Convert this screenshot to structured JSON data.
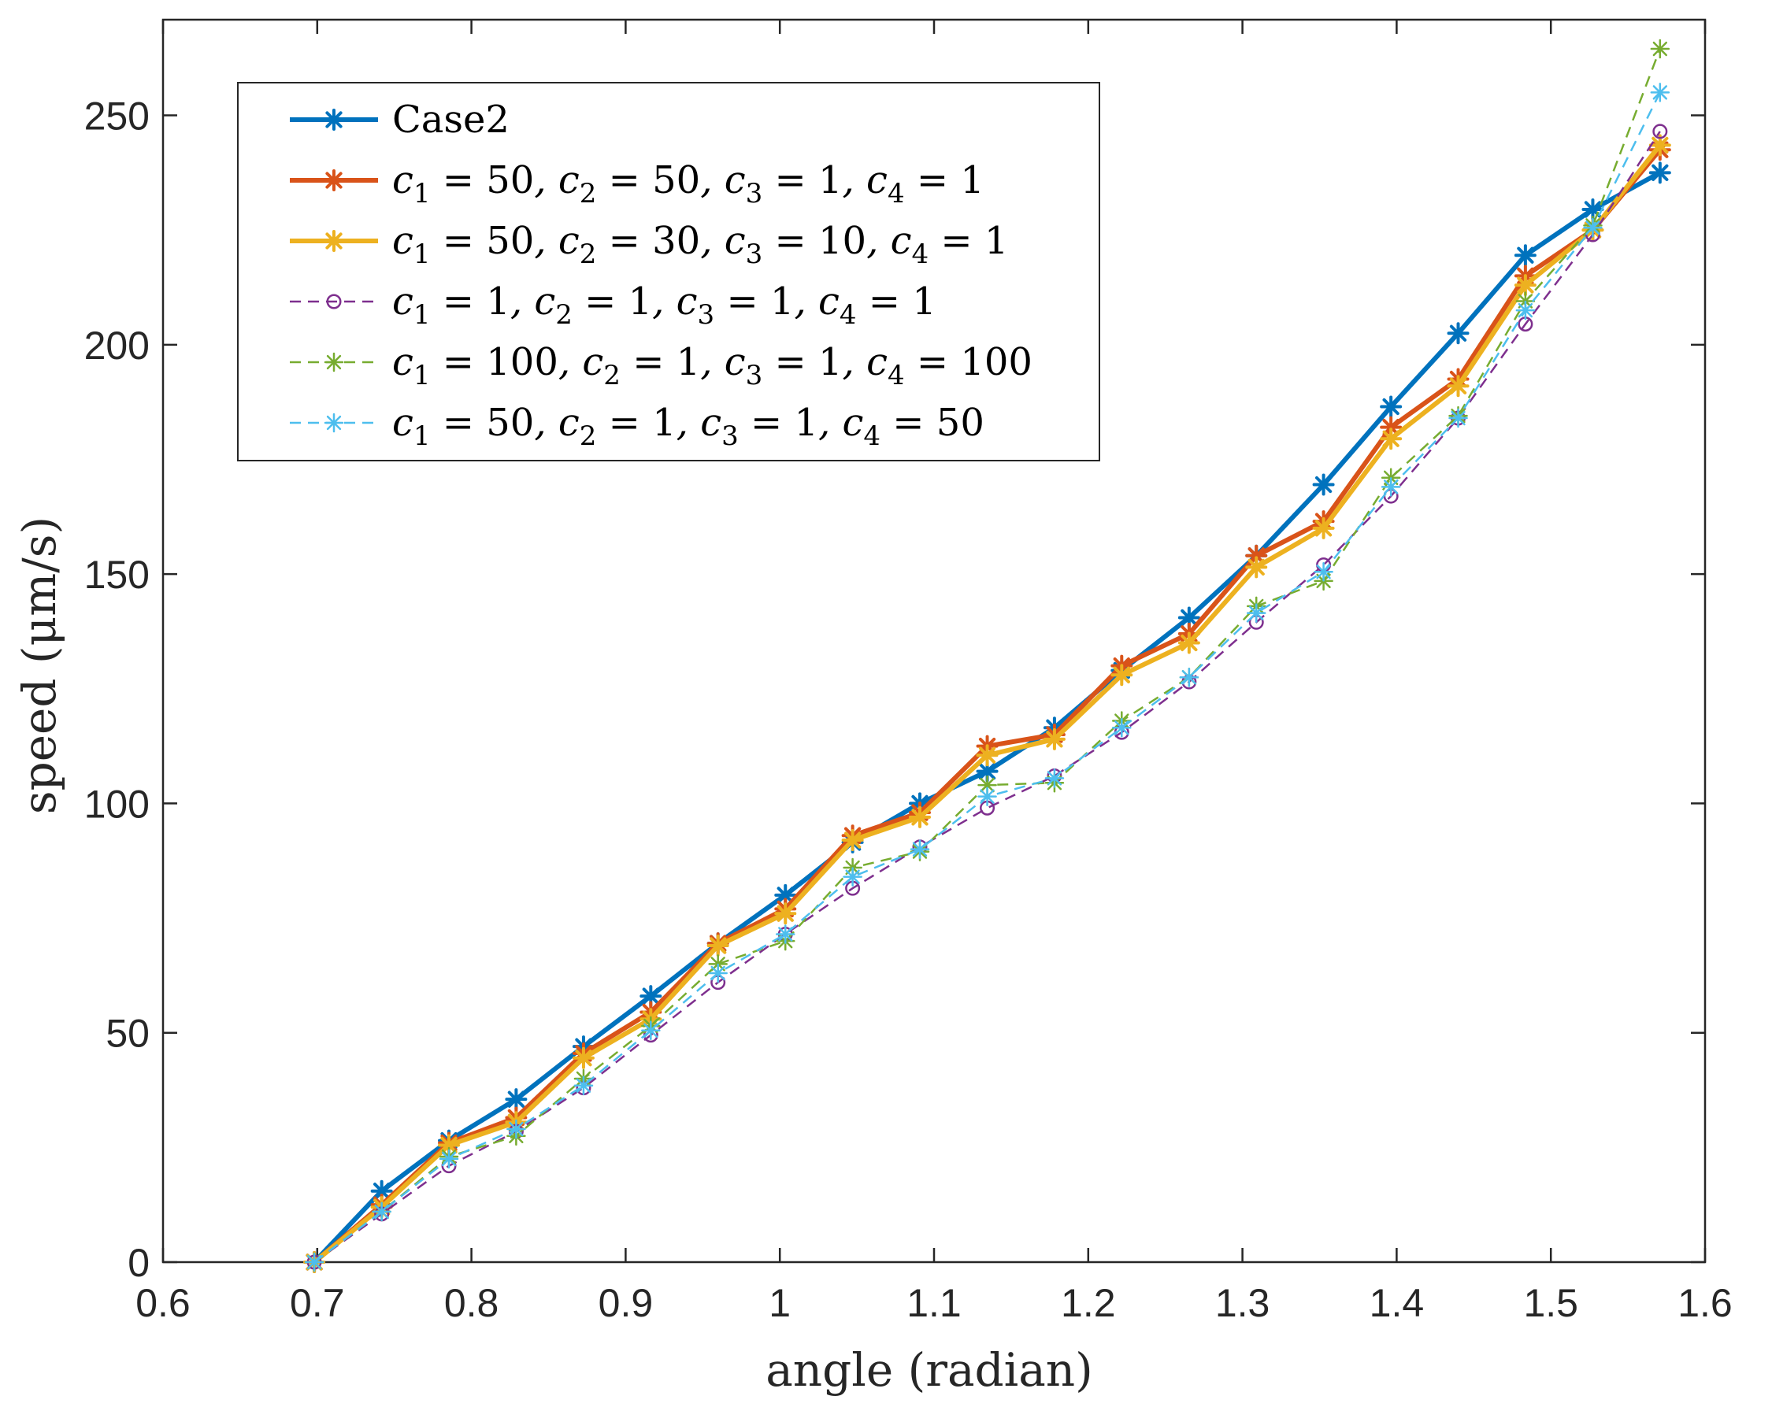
{
  "chart_data": {
    "type": "line",
    "title": "",
    "xlabel": "angle (radian)",
    "ylabel": "speed (μm/s)",
    "xlim": [
      0.6,
      1.6
    ],
    "ylim": [
      0,
      270
    ],
    "xticks": [
      "0.6",
      "0.7",
      "0.8",
      "0.9",
      "1",
      "1.1",
      "1.2",
      "1.3",
      "1.4",
      "1.5",
      "1.6"
    ],
    "yticks": [
      "0",
      "50",
      "100",
      "150",
      "200",
      "250"
    ],
    "grid": false,
    "legend_position": "top-left",
    "x": [
      0.6981,
      0.7418,
      0.7854,
      0.829,
      0.8727,
      0.9163,
      0.9599,
      1.0036,
      1.0472,
      1.0908,
      1.1345,
      1.1781,
      1.2217,
      1.2654,
      1.309,
      1.3526,
      1.3963,
      1.4399,
      1.4835,
      1.5272,
      1.5708
    ],
    "series": [
      {
        "name": "Case2",
        "legend": {
          "main": "Case2"
        },
        "color": "#0072BD",
        "style": "solid",
        "marker": "star",
        "values": [
          0,
          15.5,
          26.5,
          35.5,
          47,
          58,
          69.5,
          80,
          91.5,
          100,
          107,
          116.5,
          129,
          140.5,
          154,
          169.5,
          186.5,
          202.5,
          219.5,
          229.5,
          237.5
        ]
      },
      {
        "name": "c1 = 50, c2 = 50, c3 = 1, c4 = 1",
        "legend": {
          "c1": "50",
          "c2": "50",
          "c3": "1",
          "c4": "1"
        },
        "color": "#D95319",
        "style": "solid",
        "marker": "star",
        "values": [
          0,
          12.5,
          26,
          31.5,
          45.5,
          54.5,
          69.5,
          77,
          93,
          98,
          112.5,
          115,
          130,
          137,
          154,
          161.5,
          182,
          192.5,
          215,
          225,
          242.5
        ]
      },
      {
        "name": "c1 = 50, c2 = 30, c3 = 10, c4 = 1",
        "legend": {
          "c1": "50",
          "c2": "30",
          "c3": "10",
          "c4": "1"
        },
        "color": "#EDB120",
        "style": "solid",
        "marker": "star",
        "values": [
          0,
          12,
          25.5,
          30.5,
          44.5,
          53,
          69,
          76,
          92,
          97,
          110.5,
          114,
          128,
          135,
          151.5,
          160,
          179.5,
          191,
          213,
          225,
          243.5
        ]
      },
      {
        "name": "c1 = 1, c2 = 1, c3 = 1, c4 = 1",
        "legend": {
          "c1": "1",
          "c2": "1",
          "c3": "1",
          "c4": "1"
        },
        "color": "#7E2F8E",
        "style": "dashed",
        "marker": "circle",
        "values": [
          0,
          10.5,
          21,
          28.5,
          38,
          49.5,
          61,
          71.5,
          81.5,
          90.5,
          99,
          106,
          115.5,
          126.5,
          139.5,
          152,
          167,
          184,
          204.5,
          224,
          246.5
        ]
      },
      {
        "name": "c1 = 100, c2 = 1, c3 = 1, c4 = 100",
        "legend": {
          "c1": "100",
          "c2": "1",
          "c3": "1",
          "c4": "100"
        },
        "color": "#77AC30",
        "style": "dashed",
        "marker": "star",
        "values": [
          0,
          11,
          23,
          27.5,
          40,
          51.5,
          65,
          70,
          86,
          89.5,
          104,
          104.5,
          118,
          127.5,
          143,
          148.5,
          171,
          184.5,
          209.5,
          226,
          264.5
        ]
      },
      {
        "name": "c1 = 50, c2 = 1, c3 = 1, c4 = 50",
        "legend": {
          "c1": "50",
          "c2": "1",
          "c3": "1",
          "c4": "50"
        },
        "color": "#4DBEEE",
        "style": "dashed",
        "marker": "star",
        "values": [
          0,
          11,
          22.5,
          29,
          38.5,
          50.5,
          63,
          71.5,
          84,
          90,
          101.5,
          105.5,
          116.5,
          127.5,
          141.5,
          150.5,
          169,
          184,
          207.5,
          225.5,
          255
        ]
      }
    ]
  }
}
